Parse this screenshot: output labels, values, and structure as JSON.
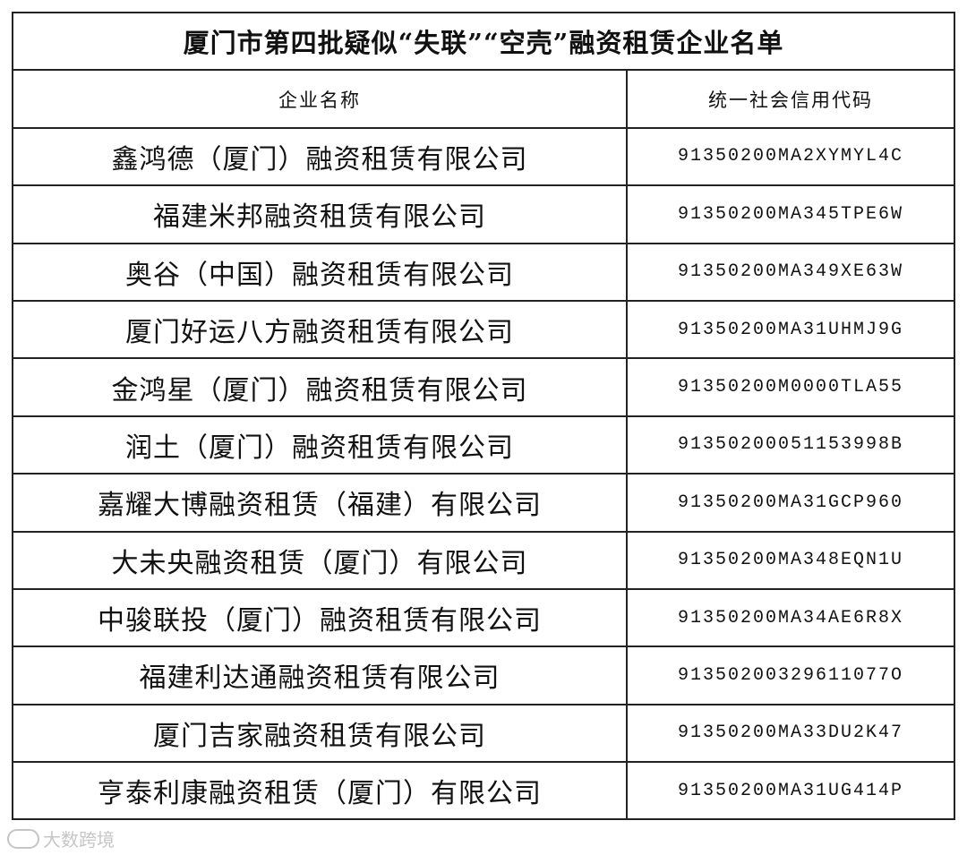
{
  "title": "厦门市第四批疑似“失联”“空壳”融资租赁企业名单",
  "headers": {
    "name": "企业名称",
    "code": "统一社会信用代码"
  },
  "rows": [
    {
      "name": "鑫鸿德（厦门）融资租赁有限公司",
      "code": "91350200MA2XYMYL4C"
    },
    {
      "name": "福建米邦融资租赁有限公司",
      "code": "91350200MA345TPE6W"
    },
    {
      "name": "奥谷（中国）融资租赁有限公司",
      "code": "91350200MA349XE63W"
    },
    {
      "name": "厦门好运八方融资租赁有限公司",
      "code": "91350200MA31UHMJ9G"
    },
    {
      "name": "金鸿星（厦门）融资租赁有限公司",
      "code": "91350200M0000TLA55"
    },
    {
      "name": "润土（厦门）融资租赁有限公司",
      "code": "91350200051153998B"
    },
    {
      "name": "嘉耀大博融资租赁（福建）有限公司",
      "code": "91350200MA31GCP960"
    },
    {
      "name": "大未央融资租赁（厦门）有限公司",
      "code": "91350200MA348EQN1U"
    },
    {
      "name": "中骏联投（厦门）融资租赁有限公司",
      "code": "91350200MA34AE6R8X"
    },
    {
      "name": "福建利达通融资租赁有限公司",
      "code": "91350200329611077O"
    },
    {
      "name": "厦门吉家融资租赁有限公司",
      "code": "91350200MA33DU2K47"
    },
    {
      "name": "亨泰利康融资租赁（厦门）有限公司",
      "code": "91350200MA31UG414P"
    }
  ],
  "watermark": "大数跨境"
}
